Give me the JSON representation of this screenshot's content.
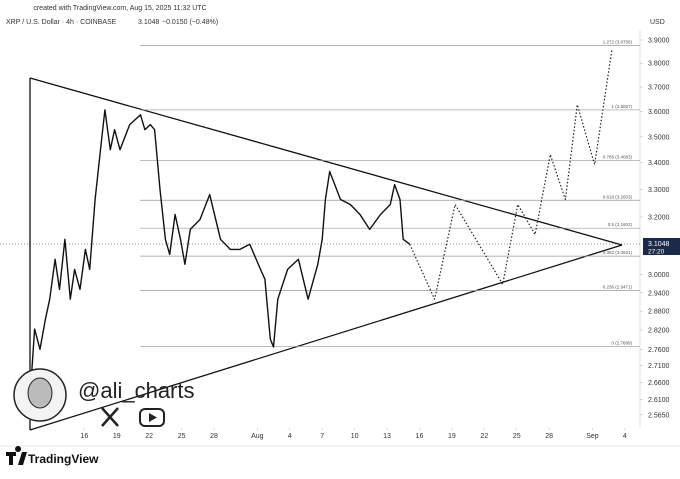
{
  "header": {
    "created": "created with TradingView.com, Aug 15, 2025 11:32 UTC",
    "symbol": "XRP / U.S. Dollar · 4h · COINBASE",
    "price": "3.1048",
    "change": "−0.0150 (−0.48%)"
  },
  "watermark": {
    "handle": "@ali_charts",
    "brand": "TradingView"
  },
  "chart_data": {
    "type": "line",
    "log_scale": true,
    "currency": "USD",
    "last_price": 3.1048,
    "countdown": "27:20",
    "xlim": [
      -7.8,
      51.4
    ],
    "ylim": [
      2.48,
      4.015
    ],
    "xticks": [
      {
        "value": 0,
        "label": "16"
      },
      {
        "value": 3,
        "label": "19"
      },
      {
        "value": 6,
        "label": "22"
      },
      {
        "value": 9,
        "label": "25"
      },
      {
        "value": 12,
        "label": "28"
      },
      {
        "value": 16,
        "label": "Aug"
      },
      {
        "value": 19,
        "label": "4"
      },
      {
        "value": 22,
        "label": "7"
      },
      {
        "value": 25,
        "label": "10"
      },
      {
        "value": 28,
        "label": "13"
      },
      {
        "value": 31,
        "label": "16"
      },
      {
        "value": 34,
        "label": "19"
      },
      {
        "value": 37,
        "label": "22"
      },
      {
        "value": 40,
        "label": "25"
      },
      {
        "value": 43,
        "label": "28"
      },
      {
        "value": 47,
        "label": "Sep"
      },
      {
        "value": 50,
        "label": "4"
      }
    ],
    "yticks": [
      {
        "value": 3.9,
        "label": "3.9000"
      },
      {
        "value": 3.8,
        "label": "3.8000"
      },
      {
        "value": 3.7,
        "label": "3.7000"
      },
      {
        "value": 3.6,
        "label": "3.6000"
      },
      {
        "value": 3.5,
        "label": "3.5000"
      },
      {
        "value": 3.4,
        "label": "3.4000"
      },
      {
        "value": 3.3,
        "label": "3.3000"
      },
      {
        "value": 3.2,
        "label": "3.2000"
      },
      {
        "value": 3,
        "label": "3.0000"
      },
      {
        "value": 2.94,
        "label": "2.9400"
      },
      {
        "value": 2.88,
        "label": "2.8800"
      },
      {
        "value": 2.82,
        "label": "2.8200"
      },
      {
        "value": 2.76,
        "label": "2.7600"
      },
      {
        "value": 2.71,
        "label": "2.7100"
      },
      {
        "value": 2.66,
        "label": "2.6600"
      },
      {
        "value": 2.61,
        "label": "2.6100"
      },
      {
        "value": 2.565,
        "label": "2.5650"
      }
    ],
    "fib_levels": [
      {
        "label": "1.272 (3.8756)",
        "value": 3.8756
      },
      {
        "label": "1 (3.6067)",
        "value": 3.6067
      },
      {
        "label": "0.786 (3.4083)",
        "value": 3.4083
      },
      {
        "label": "0.618 (3.2603)",
        "value": 3.2603
      },
      {
        "label": "0.5 (3.1602)",
        "value": 3.1602
      },
      {
        "label": "0.382 (3.0631)",
        "value": 3.0631
      },
      {
        "label": "0.236 (2.9471)",
        "value": 2.9471
      },
      {
        "label": "0 (2.7689)",
        "value": 2.7689
      }
    ],
    "series": [
      {
        "name": "XRP / U.S. Dollar",
        "color": "#111111",
        "dashed": false,
        "x": [
          -5.0,
          -4.6,
          -4.1,
          -3.6,
          -3.2,
          -2.7,
          -2.3,
          -1.8,
          -1.3,
          -0.9,
          -0.4,
          0.1,
          0.5,
          1.0,
          1.5,
          1.9,
          2.4,
          2.8,
          3.3,
          4.2,
          5.2,
          5.6,
          6.1,
          6.5,
          7.0,
          7.5,
          7.9,
          8.4,
          8.9,
          9.3,
          9.8,
          10.7,
          11.6,
          12.6,
          13.5,
          14.4,
          15.3,
          16.3,
          16.7,
          17.2,
          17.5,
          17.9,
          18.8,
          19.8,
          20.7,
          21.6,
          22.0,
          22.3,
          22.7,
          23.7,
          24.6,
          25.5,
          26.4,
          27.4,
          28.3,
          28.7,
          29.2,
          29.5,
          30.1
        ],
        "values": [
          2.626,
          2.823,
          2.76,
          2.854,
          2.919,
          3.052,
          2.951,
          3.121,
          2.919,
          3.018,
          2.951,
          3.086,
          3.018,
          3.263,
          3.45,
          3.607,
          3.45,
          3.528,
          3.45,
          3.548,
          3.587,
          3.528,
          3.548,
          3.528,
          3.3,
          3.121,
          3.069,
          3.209,
          3.121,
          3.035,
          3.156,
          3.191,
          3.281,
          3.121,
          3.086,
          3.086,
          3.104,
          3.018,
          2.985,
          2.792,
          2.767,
          2.919,
          3.018,
          3.052,
          2.919,
          3.035,
          3.121,
          3.263,
          3.367,
          3.263,
          3.245,
          3.209,
          3.156,
          3.209,
          3.245,
          3.318,
          3.263,
          3.121,
          3.104
        ]
      },
      {
        "color": "#222222",
        "dashed": true,
        "x": [
          30.1,
          32.4,
          34.3,
          38.7,
          40.1,
          41.7,
          43.1,
          44.5,
          45.6,
          47.2,
          48.8
        ],
        "values": [
          3.104,
          2.919,
          3.245,
          2.968,
          3.245,
          3.138,
          3.431,
          3.263,
          3.628,
          3.393,
          3.857
        ]
      }
    ]
  }
}
